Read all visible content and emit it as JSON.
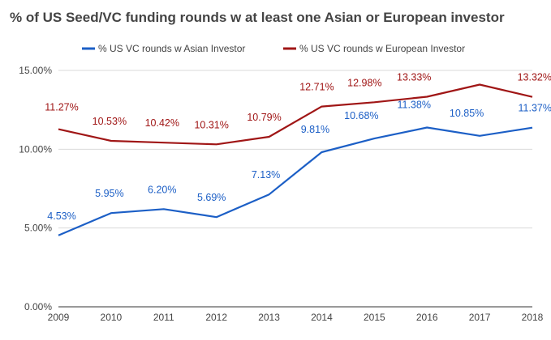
{
  "chart_data": {
    "type": "line",
    "title": "% of US Seed/VC funding rounds w at least one Asian or European investor",
    "xlabel": "",
    "ylabel": "",
    "x": [
      "2009",
      "2010",
      "2011",
      "2012",
      "2013",
      "2014",
      "2015",
      "2016",
      "2017",
      "2018"
    ],
    "ylim": [
      0,
      15
    ],
    "yticks": [
      "0.00%",
      "5.00%",
      "10.00%",
      "15.00%"
    ],
    "grid": true,
    "legend_position": "top",
    "series": [
      {
        "name": "% US VC rounds w Asian Investor",
        "color": "#1c5fc6",
        "values": [
          4.53,
          5.95,
          6.2,
          5.69,
          7.13,
          9.81,
          10.68,
          11.38,
          10.85,
          11.37
        ],
        "labels": [
          "4.53%",
          "5.95%",
          "6.20%",
          "5.69%",
          "7.13%",
          "9.81%",
          "10.68%",
          "11.38%",
          "10.85%",
          "11.37%"
        ]
      },
      {
        "name": "% US VC rounds w European Investor",
        "color": "#a01616",
        "values": [
          11.27,
          10.53,
          10.42,
          10.31,
          10.79,
          12.71,
          12.98,
          13.33,
          14.1,
          13.32
        ],
        "labels": [
          "11.27%",
          "10.53%",
          "10.42%",
          "10.31%",
          "10.79%",
          "12.71%",
          "12.98%",
          "13.33%",
          "",
          "13.32%"
        ]
      }
    ]
  }
}
